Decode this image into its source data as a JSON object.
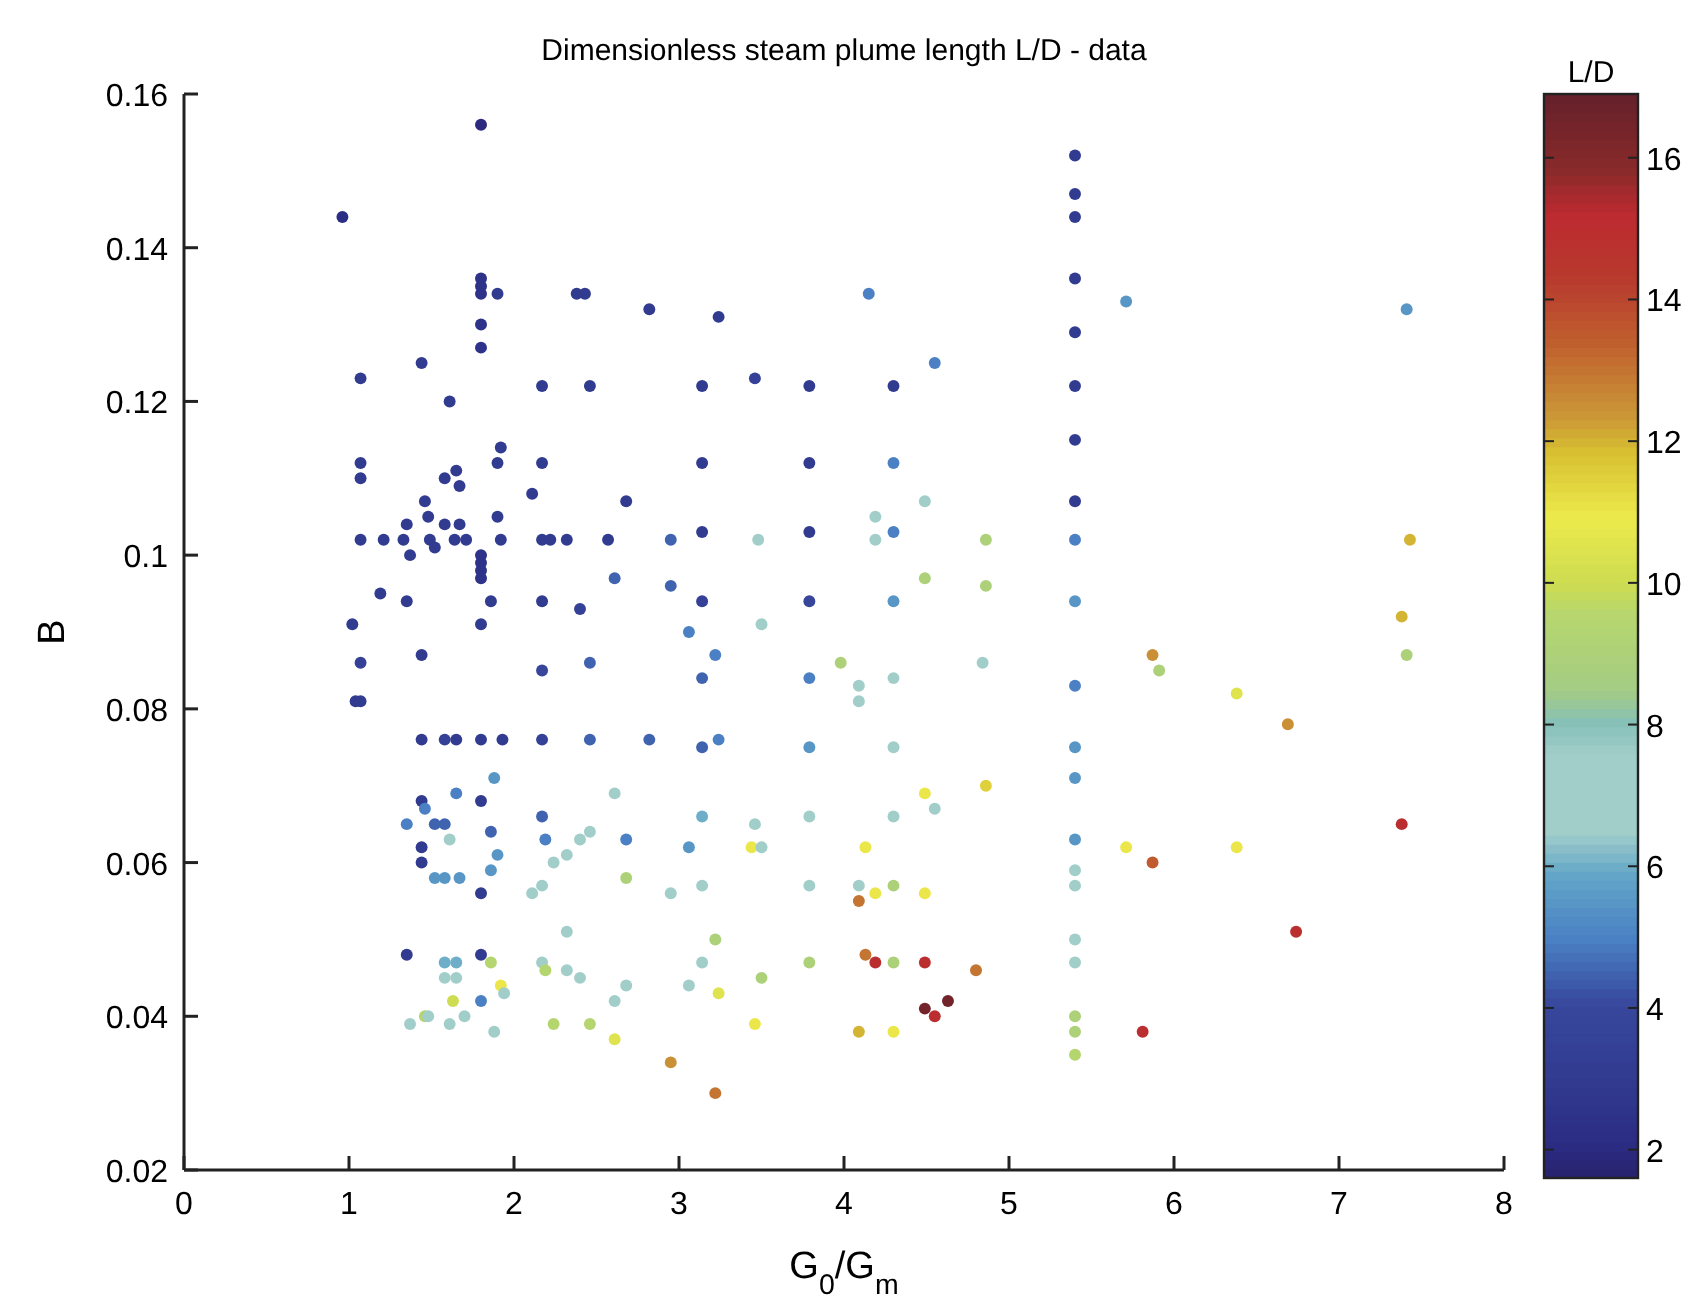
{
  "chart_data": {
    "type": "scatter",
    "title": "Dimensionless steam plume length L/D - data",
    "xlabel": "G$_{0}$/G$_{m}$",
    "ylabel": "B",
    "clabel": "L/D",
    "xlim": [
      0,
      8
    ],
    "xticks": [
      0,
      1,
      2,
      3,
      4,
      5,
      6,
      7,
      8
    ],
    "ylim": [
      0.02,
      0.16
    ],
    "yticks": [
      0.02,
      0.04,
      0.06,
      0.08,
      0.1,
      0.12,
      0.14,
      0.16
    ],
    "clim": [
      1.6,
      16.9
    ],
    "cticks": [
      2,
      4,
      6,
      8,
      10,
      12,
      14,
      16
    ],
    "marker": "circle",
    "grid": false,
    "series": [
      {
        "x": [
          1.8,
          0.96,
          1.8,
          1.8,
          1.8,
          1.9,
          2.38,
          2.43,
          2.82,
          1.8,
          1.8,
          1.44,
          1.07,
          1.61,
          2.17,
          2.46,
          1.92,
          1.07,
          1.07,
          1.65,
          1.58,
          1.67,
          1.9,
          2.17,
          2.11,
          2.68,
          1.46,
          1.35,
          1.48,
          1.58,
          1.67,
          1.9,
          1.07,
          1.21,
          1.33,
          1.49,
          1.64,
          1.71,
          1.92,
          2.17,
          2.22,
          2.32,
          2.57,
          1.37,
          1.52,
          1.8,
          1.8,
          1.8,
          1.8,
          2.61,
          1.19,
          1.35,
          1.86,
          2.17,
          2.4,
          1.02,
          1.8,
          1.07,
          1.44,
          2.17,
          2.46,
          1.04,
          1.07,
          1.44,
          1.58,
          1.65,
          1.8,
          1.93,
          2.17,
          2.46,
          2.82,
          1.88,
          1.65,
          1.8,
          1.44,
          1.46,
          2.61,
          1.35,
          1.52,
          1.58,
          1.61,
          1.86,
          2.17,
          2.19,
          2.4,
          2.46,
          2.68,
          2.32,
          2.24,
          2.17,
          2.11,
          1.44,
          1.44,
          1.52,
          1.58,
          1.67,
          1.8,
          1.86,
          1.9,
          2.68,
          2.32,
          1.35,
          1.8,
          1.86,
          1.58,
          1.65,
          1.58,
          1.65,
          1.92,
          1.94,
          2.17,
          2.19,
          2.32,
          2.4,
          2.68,
          1.63,
          1.8,
          2.61,
          1.37,
          1.46,
          1.48,
          1.61,
          1.7,
          1.88,
          2.24,
          2.46,
          2.61,
          5.4,
          5.4,
          5.4,
          5.4,
          5.4,
          5.4,
          5.4,
          5.4,
          5.4,
          5.4,
          3.24,
          4.15,
          4.55,
          3.14,
          3.46,
          3.79,
          4.3,
          3.14,
          3.79,
          4.3,
          3.14,
          3.79,
          4.3,
          2.95,
          3.48,
          4.19,
          4.19,
          4.49,
          4.86,
          2.95,
          3.14,
          3.79,
          4.3,
          4.49,
          4.86,
          3.06,
          3.5,
          3.22,
          3.14,
          3.79,
          3.98,
          4.09,
          4.09,
          4.3,
          4.84,
          5.4,
          3.14,
          3.24,
          3.79,
          4.3,
          5.4,
          5.4,
          4.49,
          4.86,
          4.55,
          3.14,
          3.79,
          4.3,
          3.46,
          3.06,
          3.44,
          3.5,
          4.13,
          5.4,
          5.4,
          5.4,
          2.95,
          3.14,
          3.79,
          4.09,
          4.19,
          4.3,
          4.49,
          4.09,
          3.22,
          3.14,
          3.79,
          4.13,
          4.19,
          4.3,
          4.49,
          4.8,
          3.06,
          3.24,
          3.5,
          5.4,
          5.4,
          4.49,
          4.63,
          4.55,
          3.46,
          4.09,
          4.3,
          5.4,
          5.4,
          5.4,
          2.95,
          3.22,
          5.71,
          7.41,
          7.43,
          7.38,
          7.41,
          5.87,
          5.91,
          6.38,
          6.69,
          7.38,
          5.71,
          5.87,
          6.38,
          6.74,
          5.81
        ],
        "values": [
          0.156,
          0.144,
          0.136,
          0.135,
          0.134,
          0.134,
          0.134,
          0.134,
          0.132,
          0.13,
          0.127,
          0.125,
          0.123,
          0.12,
          0.122,
          0.122,
          0.114,
          0.112,
          0.11,
          0.111,
          0.11,
          0.109,
          0.112,
          0.112,
          0.108,
          0.107,
          0.107,
          0.104,
          0.105,
          0.104,
          0.104,
          0.105,
          0.102,
          0.102,
          0.102,
          0.102,
          0.102,
          0.102,
          0.102,
          0.102,
          0.102,
          0.102,
          0.102,
          0.1,
          0.101,
          0.1,
          0.099,
          0.098,
          0.097,
          0.097,
          0.095,
          0.094,
          0.094,
          0.094,
          0.093,
          0.091,
          0.091,
          0.086,
          0.087,
          0.085,
          0.086,
          0.081,
          0.081,
          0.076,
          0.076,
          0.076,
          0.076,
          0.076,
          0.076,
          0.076,
          0.076,
          0.071,
          0.069,
          0.068,
          0.068,
          0.067,
          0.069,
          0.065,
          0.065,
          0.065,
          0.063,
          0.064,
          0.066,
          0.063,
          0.063,
          0.064,
          0.063,
          0.061,
          0.06,
          0.057,
          0.056,
          0.062,
          0.06,
          0.058,
          0.058,
          0.058,
          0.056,
          0.059,
          0.061,
          0.058,
          0.051,
          0.048,
          0.048,
          0.047,
          0.047,
          0.047,
          0.045,
          0.045,
          0.044,
          0.043,
          0.047,
          0.046,
          0.046,
          0.045,
          0.044,
          0.042,
          0.042,
          0.042,
          0.039,
          0.04,
          0.04,
          0.039,
          0.04,
          0.038,
          0.039,
          0.039,
          0.037,
          0.152,
          0.147,
          0.144,
          0.136,
          0.129,
          0.122,
          0.115,
          0.107,
          0.102,
          0.094,
          0.131,
          0.134,
          0.125,
          0.122,
          0.123,
          0.122,
          0.122,
          0.112,
          0.112,
          0.112,
          0.103,
          0.103,
          0.103,
          0.102,
          0.102,
          0.105,
          0.102,
          0.107,
          0.102,
          0.096,
          0.094,
          0.094,
          0.094,
          0.097,
          0.096,
          0.09,
          0.091,
          0.087,
          0.084,
          0.084,
          0.086,
          0.083,
          0.081,
          0.084,
          0.086,
          0.083,
          0.075,
          0.076,
          0.075,
          0.075,
          0.075,
          0.071,
          0.069,
          0.07,
          0.067,
          0.066,
          0.066,
          0.066,
          0.065,
          0.062,
          0.062,
          0.062,
          0.062,
          0.063,
          0.059,
          0.057,
          0.056,
          0.057,
          0.057,
          0.057,
          0.056,
          0.057,
          0.056,
          0.055,
          0.05,
          0.047,
          0.047,
          0.048,
          0.047,
          0.047,
          0.047,
          0.046,
          0.044,
          0.043,
          0.045,
          0.047,
          0.05,
          0.041,
          0.042,
          0.04,
          0.039,
          0.038,
          0.038,
          0.04,
          0.038,
          0.035,
          0.034,
          0.03,
          0.133,
          0.132,
          0.102,
          0.092,
          0.087,
          0.087,
          0.085,
          0.082,
          0.078,
          0.065,
          0.062,
          0.06,
          0.062,
          0.051,
          0.038
        ],
        "cvalues": [
          2,
          2.2,
          2.5,
          2.5,
          2.5,
          3,
          3,
          3,
          3,
          2.5,
          2.5,
          3,
          3,
          3,
          3,
          3,
          3,
          3,
          3,
          3,
          3,
          3,
          3,
          3,
          3,
          3,
          3,
          3,
          3,
          3,
          3,
          3,
          3,
          3,
          3,
          3,
          3,
          3,
          3,
          3,
          3,
          3,
          3,
          3,
          3,
          2.5,
          2.5,
          2.5,
          2.5,
          4.5,
          3,
          3,
          3,
          3,
          3.5,
          3,
          3,
          3.5,
          3,
          4,
          4.5,
          3,
          3,
          3,
          3.5,
          3,
          3,
          3,
          3.5,
          4.5,
          4.5,
          5.5,
          5,
          3,
          3,
          5,
          7,
          5,
          4.5,
          4.5,
          7.5,
          4.5,
          4.5,
          5,
          7.5,
          7.5,
          5,
          7.5,
          7,
          7.5,
          7,
          3,
          3,
          5.5,
          5.5,
          5.5,
          3,
          5.5,
          5.5,
          9,
          7.5,
          3,
          3,
          9.5,
          6,
          6,
          7,
          7,
          11,
          7,
          7.5,
          9.5,
          7.5,
          6.5,
          7.5,
          10,
          5,
          7.5,
          7.5,
          9.5,
          7.5,
          7.5,
          7.5,
          7.5,
          9.5,
          9.5,
          10.5,
          3,
          3,
          3,
          3,
          3,
          3,
          3,
          3,
          5,
          5.5,
          3,
          5,
          5,
          3,
          3.5,
          3,
          3,
          3,
          3,
          5,
          3,
          3,
          5,
          4.5,
          7,
          7.5,
          7,
          7.5,
          9,
          4.5,
          3.5,
          4,
          5.5,
          9,
          9,
          5,
          7.5,
          5,
          4.5,
          5,
          9,
          7,
          7.5,
          7.5,
          7.5,
          5,
          4.5,
          5,
          5.5,
          7,
          5.5,
          5.5,
          11,
          11.5,
          7,
          6,
          6.5,
          7,
          7,
          5.5,
          11,
          7,
          11,
          5.5,
          7,
          7,
          7,
          7,
          7,
          7,
          11,
          9,
          11,
          13,
          9,
          7,
          9,
          13,
          15,
          9,
          15,
          13,
          7,
          10.5,
          9,
          7,
          7,
          16.5,
          16.5,
          15,
          11,
          12,
          11,
          9,
          9,
          9.5,
          12.5,
          13,
          5.5,
          5.5,
          12,
          12,
          9,
          12.5,
          9,
          10.5,
          12.5,
          15,
          11,
          13.5,
          11,
          15,
          15
        ]
      }
    ]
  }
}
